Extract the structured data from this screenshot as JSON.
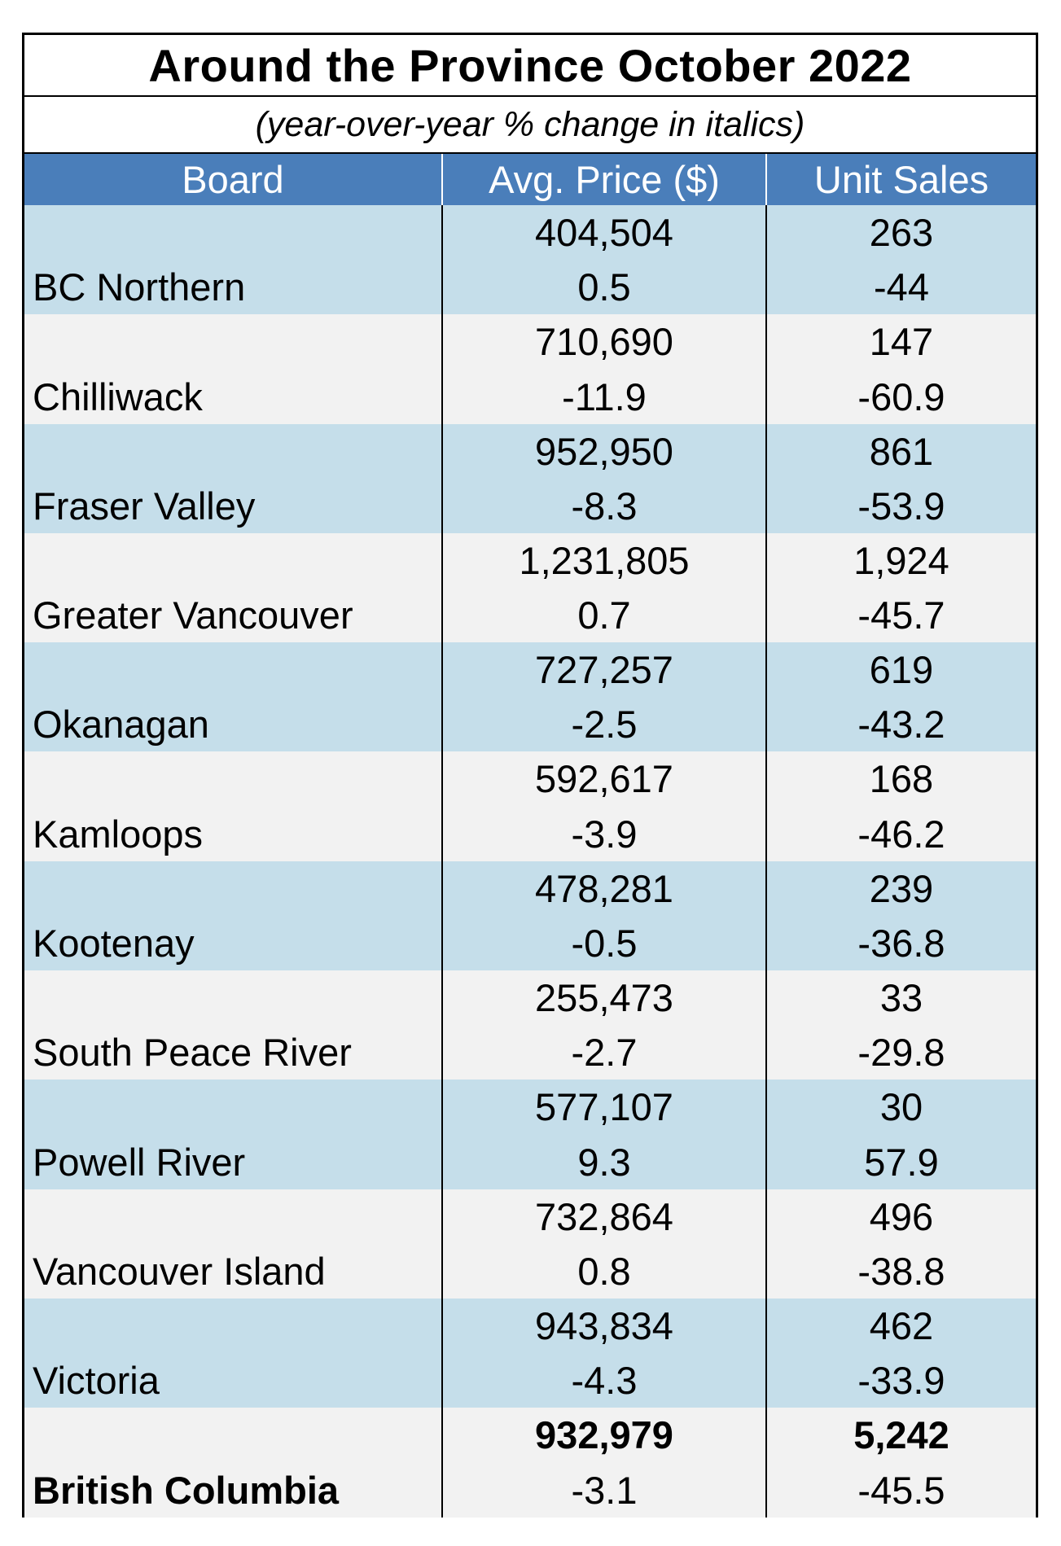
{
  "title": "Around the Province October 2022",
  "subtitle": "(year-over-year % change in italics)",
  "colors": {
    "header_bg": "#4a7eba",
    "row_blue": "#c5deea",
    "row_gray": "#f2f2f2",
    "header_text": "#ffffff"
  },
  "chart_data": {
    "type": "table",
    "title": "Around the Province October 2022",
    "subtitle": "(year-over-year % change in italics)",
    "columns": [
      "Board",
      "Avg. Price ($)",
      "Unit Sales"
    ],
    "rows": [
      {
        "board": "BC Northern",
        "avg_price": "404,504",
        "avg_price_change": "0.5",
        "unit_sales": "263",
        "unit_sales_change": "-44"
      },
      {
        "board": "Chilliwack",
        "avg_price": "710,690",
        "avg_price_change": "-11.9",
        "unit_sales": "147",
        "unit_sales_change": "-60.9"
      },
      {
        "board": "Fraser Valley",
        "avg_price": "952,950",
        "avg_price_change": "-8.3",
        "unit_sales": "861",
        "unit_sales_change": "-53.9"
      },
      {
        "board": "Greater Vancouver",
        "avg_price": "1,231,805",
        "avg_price_change": "0.7",
        "unit_sales": "1,924",
        "unit_sales_change": "-45.7"
      },
      {
        "board": "Okanagan",
        "avg_price": "727,257",
        "avg_price_change": "-2.5",
        "unit_sales": "619",
        "unit_sales_change": "-43.2"
      },
      {
        "board": "Kamloops",
        "avg_price": "592,617",
        "avg_price_change": "-3.9",
        "unit_sales": "168",
        "unit_sales_change": "-46.2"
      },
      {
        "board": "Kootenay",
        "avg_price": "478,281",
        "avg_price_change": "-0.5",
        "unit_sales": "239",
        "unit_sales_change": "-36.8"
      },
      {
        "board": "South Peace River",
        "avg_price": "255,473",
        "avg_price_change": "-2.7",
        "unit_sales": "33",
        "unit_sales_change": "-29.8"
      },
      {
        "board": "Powell River",
        "avg_price": "577,107",
        "avg_price_change": "9.3",
        "unit_sales": "30",
        "unit_sales_change": "57.9"
      },
      {
        "board": "Vancouver Island",
        "avg_price": "732,864",
        "avg_price_change": "0.8",
        "unit_sales": "496",
        "unit_sales_change": "-38.8"
      },
      {
        "board": "Victoria",
        "avg_price": "943,834",
        "avg_price_change": "-4.3",
        "unit_sales": "462",
        "unit_sales_change": "-33.9"
      },
      {
        "board": "British Columbia",
        "avg_price": "932,979",
        "avg_price_change": "-3.1",
        "unit_sales": "5,242",
        "unit_sales_change": "-45.5",
        "is_total": true
      }
    ]
  }
}
